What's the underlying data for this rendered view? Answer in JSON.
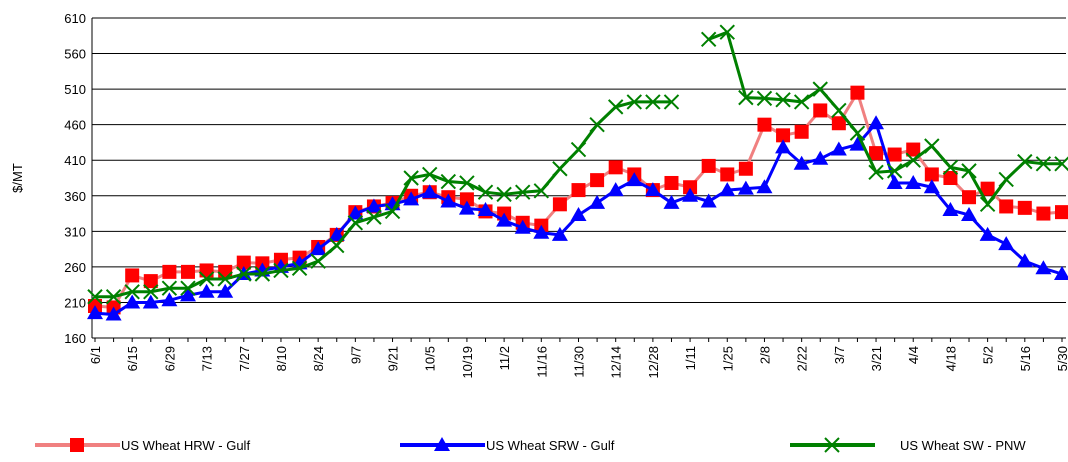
{
  "chart_data": {
    "type": "line",
    "y_label": "$/MT",
    "categories": [
      "6/1",
      null,
      "6/15",
      null,
      "6/29",
      null,
      "7/13",
      null,
      "7/27",
      null,
      "8/10",
      null,
      "8/24",
      null,
      "9/7",
      null,
      "9/21",
      null,
      "10/5",
      null,
      "10/19",
      null,
      "11/2",
      null,
      "11/16",
      null,
      "11/30",
      null,
      "12/14",
      null,
      "12/28",
      null,
      "1/11",
      null,
      "1/25",
      null,
      "2/8",
      null,
      "2/22",
      null,
      "3/7",
      null,
      "3/21",
      null,
      "4/4",
      null,
      "4/18",
      null,
      "5/2",
      null,
      "5/16",
      null,
      "5/30"
    ],
    "ylim": [
      160,
      610
    ],
    "yticks": [
      160,
      210,
      260,
      310,
      360,
      410,
      460,
      510,
      560,
      610
    ],
    "grid": true,
    "legend": "bottom",
    "series": [
      {
        "name": "US Wheat HRW - Gulf",
        "color": "#f08080",
        "marker": "square",
        "marker_color": "#ff0000",
        "values": [
          205,
          203,
          248,
          240,
          253,
          253,
          255,
          253,
          266,
          265,
          270,
          273,
          288,
          305,
          337,
          345,
          350,
          360,
          365,
          358,
          355,
          338,
          335,
          322,
          318,
          348,
          368,
          382,
          400,
          390,
          368,
          378,
          372,
          402,
          390,
          398,
          460,
          445,
          450,
          480,
          462,
          505,
          420,
          418,
          425,
          390,
          385,
          358,
          370,
          345,
          343,
          335,
          337
        ]
      },
      {
        "name": "US Wheat SRW - Gulf",
        "color": "#0000ff",
        "marker": "triangle",
        "marker_color": "#0000ff",
        "values": [
          195,
          193,
          210,
          210,
          213,
          220,
          225,
          225,
          250,
          255,
          260,
          265,
          285,
          305,
          335,
          345,
          348,
          355,
          365,
          352,
          342,
          340,
          325,
          315,
          308,
          305,
          333,
          350,
          368,
          382,
          368,
          350,
          360,
          352,
          368,
          370,
          372,
          428,
          405,
          412,
          425,
          432,
          462,
          378,
          378,
          372,
          340,
          333,
          305,
          292,
          268,
          258,
          250
        ]
      },
      {
        "name": "US Wheat SW - PNW",
        "color": "#008000",
        "marker": "x",
        "marker_color": "#008000",
        "values": [
          218,
          218,
          225,
          225,
          230,
          230,
          243,
          243,
          250,
          250,
          255,
          258,
          268,
          290,
          322,
          330,
          338,
          385,
          390,
          380,
          378,
          365,
          362,
          365,
          367,
          398,
          425,
          460,
          485,
          492,
          492,
          492,
          null,
          580,
          590,
          498,
          497,
          495,
          492,
          510,
          480,
          448,
          393,
          395,
          410,
          430,
          400,
          395,
          348,
          383,
          408,
          405,
          405
        ]
      }
    ]
  }
}
